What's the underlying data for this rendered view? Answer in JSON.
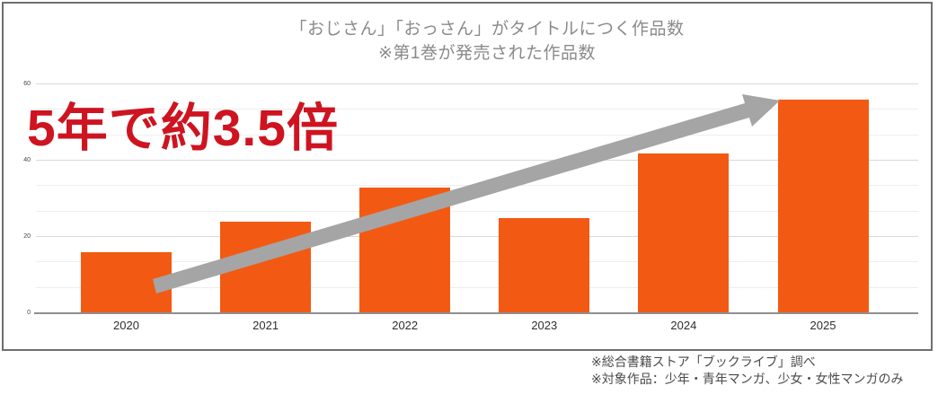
{
  "chart_data": {
    "type": "bar",
    "title": "「おじさん」「おっさん」がタイトルにつく作品数",
    "subtitle": "※第1巻が発売された作品数",
    "categories": [
      "2020",
      "2021",
      "2022",
      "2023",
      "2024",
      "2025"
    ],
    "values": [
      16,
      24,
      33,
      25,
      42,
      56
    ],
    "xlabel": "",
    "ylabel": "",
    "ylim": [
      0,
      60
    ],
    "yticks": [
      0,
      20,
      40,
      60
    ],
    "minor_grid_divisions_per_major": 3,
    "grid": "horizontal",
    "legend": "none",
    "bar_color": "#F25A13",
    "annotation": {
      "text": "5年で約3.5倍",
      "color": "#CE1420"
    },
    "trend_arrow": {
      "description": "thick gray arrow rising from 2020 bar to 2025 bar top",
      "color": "#A5A5A5"
    }
  },
  "footer": {
    "note1": "※総合書籍ストア「ブックライブ」調べ",
    "note2": "※対象作品：少年・青年マンガ、少女・女性マンガのみ"
  }
}
